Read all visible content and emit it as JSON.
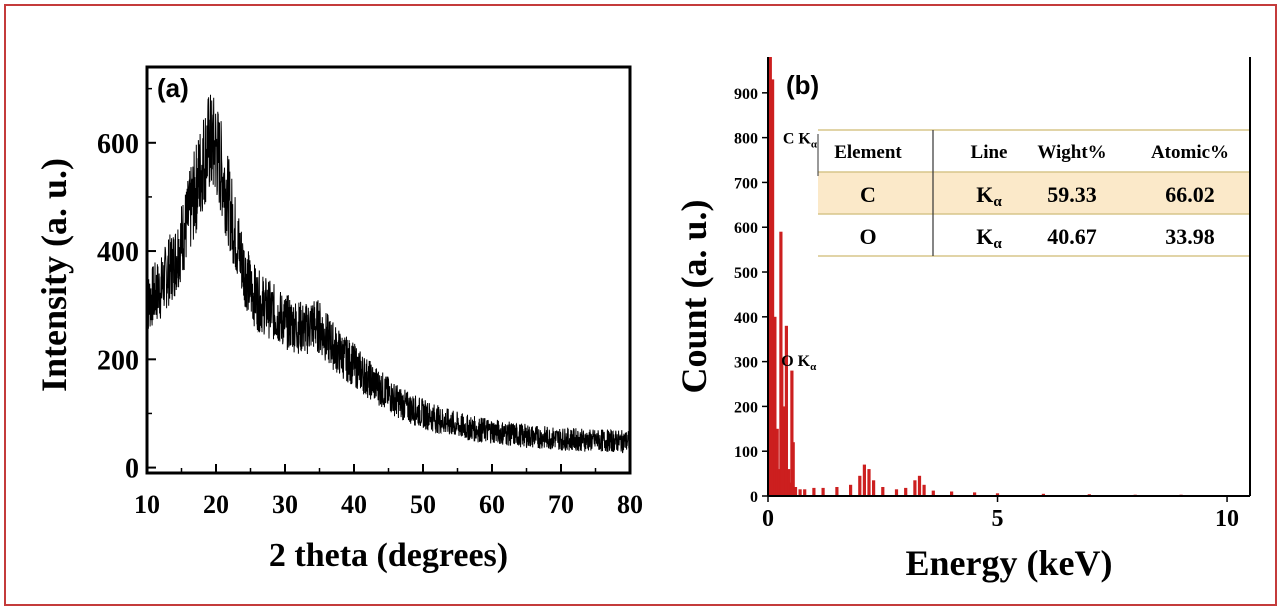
{
  "chart_data": [
    {
      "type": "line",
      "panel_label": "(a)",
      "xlabel": "2 theta (degrees)",
      "ylabel": "Intensity (a. u.)",
      "xlim": [
        10,
        80
      ],
      "ylim": [
        -10,
        740
      ],
      "xticks": [
        10,
        20,
        30,
        40,
        50,
        60,
        70,
        80
      ],
      "yticks": [
        0,
        200,
        400,
        600
      ],
      "series": [
        {
          "x": [
            10,
            11,
            12,
            13,
            14,
            15,
            16,
            17,
            18,
            19,
            20,
            21,
            22,
            23,
            24,
            25,
            26,
            27,
            28,
            29,
            30,
            31,
            32,
            33,
            34,
            35,
            36,
            37,
            38,
            39,
            40,
            42,
            44,
            46,
            48,
            50,
            52,
            54,
            56,
            58,
            60,
            62,
            64,
            66,
            68,
            70,
            72,
            74,
            76,
            78,
            80
          ],
          "y": [
            300,
            320,
            330,
            360,
            380,
            420,
            460,
            510,
            560,
            600,
            590,
            540,
            480,
            420,
            370,
            330,
            310,
            300,
            290,
            280,
            270,
            265,
            260,
            255,
            265,
            260,
            240,
            225,
            210,
            200,
            190,
            165,
            145,
            125,
            110,
            100,
            90,
            82,
            75,
            70,
            68,
            63,
            60,
            57,
            55,
            53,
            52,
            50,
            50,
            49,
            48
          ]
        }
      ]
    },
    {
      "type": "bar",
      "panel_label": "(b)",
      "xlabel": "Energy (keV)",
      "ylabel": "Count (a. u.)",
      "xlim": [
        0,
        10.5
      ],
      "ylim": [
        0,
        980
      ],
      "xticks": [
        0,
        5,
        10
      ],
      "yticks": [
        0,
        100,
        200,
        300,
        400,
        500,
        600,
        700,
        800,
        900
      ],
      "color": "#cc1f1f",
      "series": [
        {
          "x": [
            0.05,
            0.1,
            0.15,
            0.2,
            0.25,
            0.28,
            0.3,
            0.35,
            0.4,
            0.45,
            0.5,
            0.52,
            0.55,
            0.6,
            0.7,
            0.8,
            1.0,
            1.2,
            1.5,
            1.8,
            2.0,
            2.1,
            2.2,
            2.3,
            2.5,
            2.8,
            3.0,
            3.2,
            3.3,
            3.4,
            3.6,
            4.0,
            4.5,
            5.0,
            6.0,
            7.0,
            8.0,
            9.0,
            10.0
          ],
          "y": [
            980,
            930,
            400,
            150,
            60,
            590,
            300,
            200,
            380,
            60,
            30,
            280,
            120,
            20,
            15,
            15,
            18,
            18,
            20,
            25,
            45,
            70,
            60,
            35,
            20,
            15,
            18,
            35,
            45,
            25,
            12,
            10,
            8,
            6,
            5,
            4,
            3,
            3,
            2
          ]
        }
      ],
      "annotations": [
        {
          "text": "C K",
          "sub": "α",
          "x": 0.28,
          "y": 800
        },
        {
          "text": "O K",
          "sub": "α",
          "x": 0.55,
          "y": 290
        }
      ],
      "table": {
        "headers": [
          "Element",
          "Line",
          "Wight%",
          "Atomic%"
        ],
        "rows": [
          {
            "element": "C",
            "line": "K",
            "line_sub": "α",
            "weight": "59.33",
            "atomic": "66.02",
            "highlight": true
          },
          {
            "element": "O",
            "line": "K",
            "line_sub": "α",
            "weight": "40.67",
            "atomic": "33.98",
            "highlight": false
          }
        ],
        "highlight_color": "#fbe9c9",
        "rule_color": "#d7c68a"
      }
    }
  ]
}
